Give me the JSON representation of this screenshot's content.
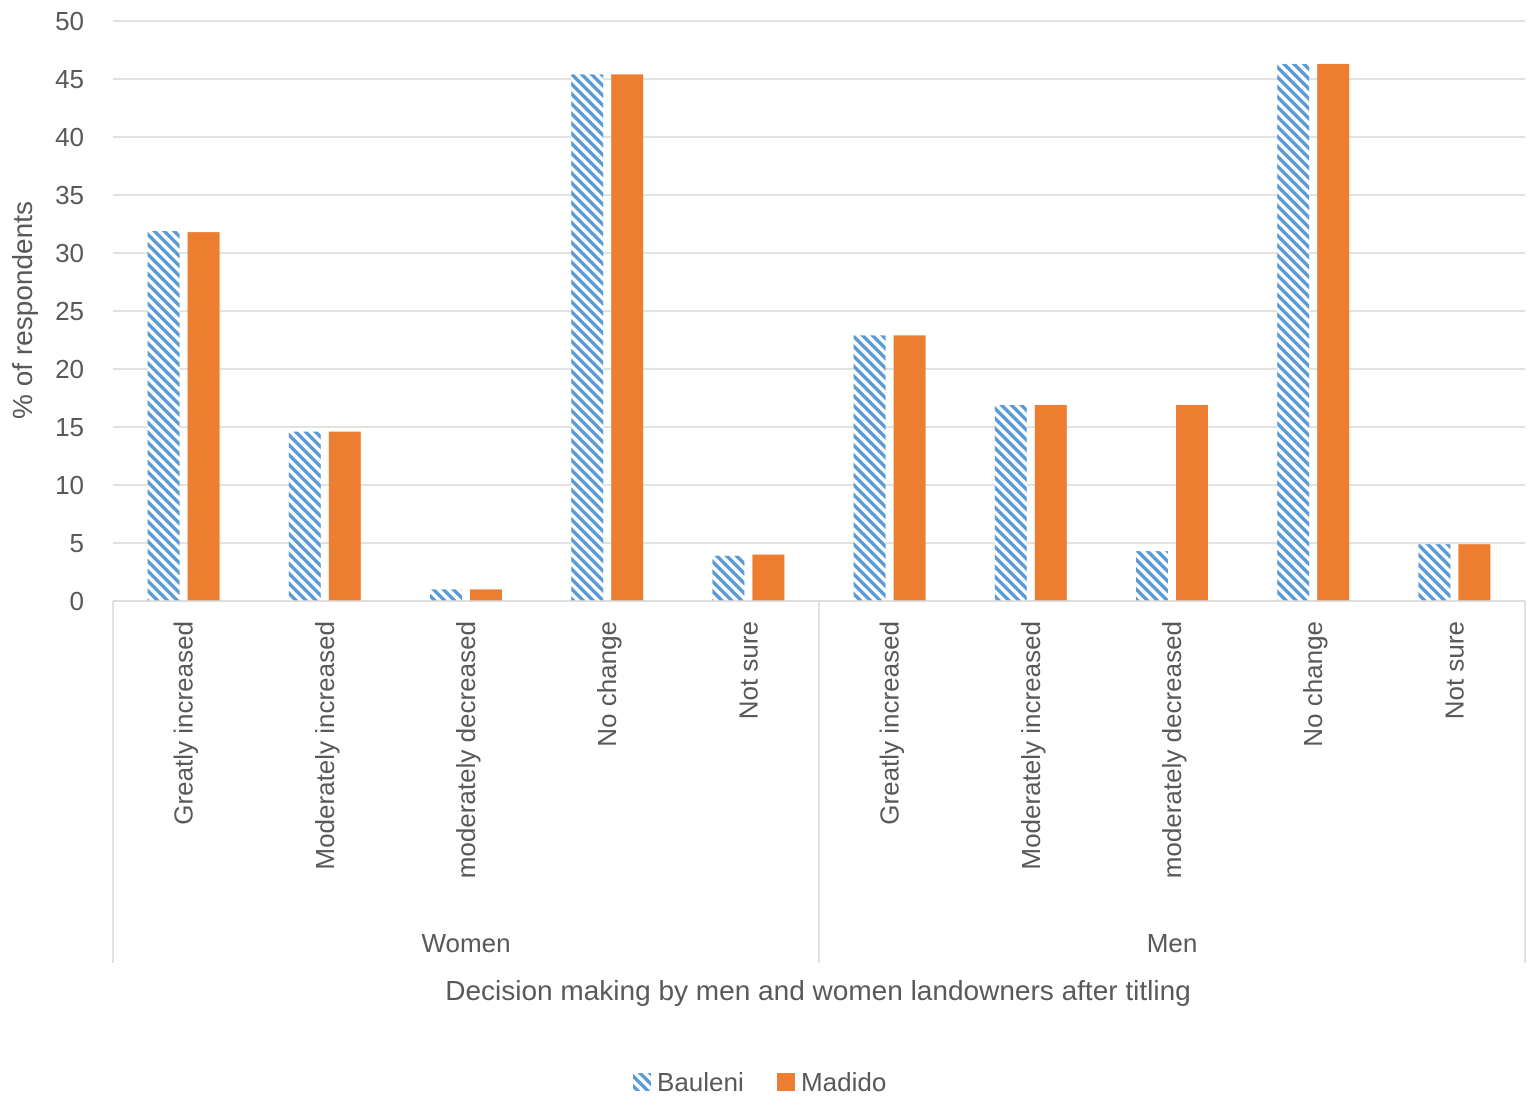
{
  "colors": {
    "bauleni": "#5B9BD5",
    "madido": "#ED7D31",
    "grid": "#D9D9D9",
    "text": "#595959"
  },
  "chart_data": {
    "type": "bar",
    "title": "",
    "xlabel": "Decision making by men and women landowners after titling",
    "ylabel": "% of respondents",
    "ylim": [
      0,
      50
    ],
    "yticks": [
      0,
      5,
      10,
      15,
      20,
      25,
      30,
      35,
      40,
      45,
      50
    ],
    "grid": true,
    "legend_position": "bottom-center",
    "groups": [
      {
        "name": "Women",
        "categories": [
          "Greatly increased",
          "Moderately increased",
          "moderately decreased",
          "No change",
          "Not sure"
        ]
      },
      {
        "name": "Men",
        "categories": [
          "Greatly increased",
          "Moderately increased",
          "moderately decreased",
          "No change",
          "Not sure"
        ]
      }
    ],
    "series": [
      {
        "name": "Bauleni",
        "pattern": "diagonal-hatch",
        "values": [
          31.9,
          14.6,
          1.0,
          45.4,
          3.9,
          22.9,
          16.9,
          4.3,
          46.3,
          4.9
        ]
      },
      {
        "name": "Madido",
        "pattern": "solid",
        "values": [
          31.8,
          14.6,
          1.0,
          45.4,
          4.0,
          22.9,
          16.9,
          16.9,
          46.3,
          4.9
        ]
      }
    ]
  }
}
